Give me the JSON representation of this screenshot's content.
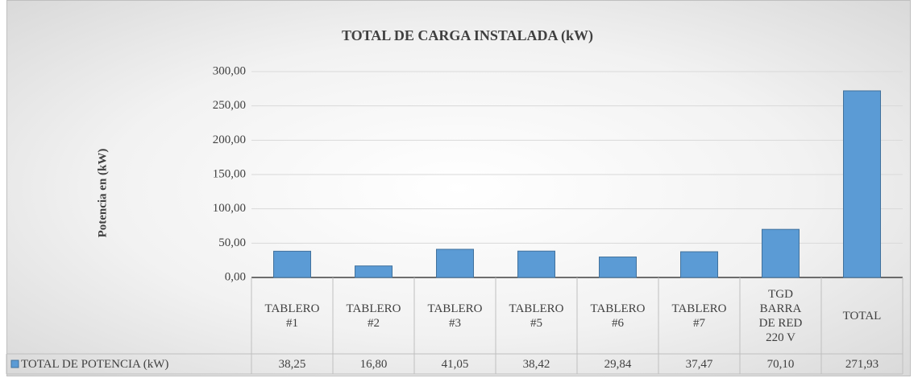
{
  "chart_data": {
    "type": "bar",
    "title": "TOTAL DE CARGA INSTALADA (kW)",
    "y_label": "Potencia en (kW)",
    "categories": [
      "TABLERO #1",
      "TABLERO #2",
      "TABLERO #3",
      "TABLERO #5",
      "TABLERO #6",
      "TABLERO #7",
      "TGD BARRA DE RED 220 V",
      "TOTAL"
    ],
    "series": [
      {
        "name": "TOTAL DE POTENCIA (kW)",
        "color": "#5b9bd5",
        "values": [
          38.25,
          16.8,
          41.05,
          38.42,
          29.84,
          37.47,
          70.1,
          271.93
        ],
        "value_labels": [
          "38,25",
          "16,80",
          "41,05",
          "38,42",
          "29,84",
          "37,47",
          "70,10",
          "271,93"
        ]
      }
    ],
    "ylim": [
      0,
      300
    ],
    "yticks": [
      {
        "value": 0,
        "label": "0,00"
      },
      {
        "value": 50,
        "label": "50,00"
      },
      {
        "value": 100,
        "label": "100,00"
      },
      {
        "value": 150,
        "label": "150,00"
      },
      {
        "value": 200,
        "label": "200,00"
      },
      {
        "value": 250,
        "label": "250,00"
      },
      {
        "value": 300,
        "label": "300,00"
      }
    ],
    "grid": true
  }
}
